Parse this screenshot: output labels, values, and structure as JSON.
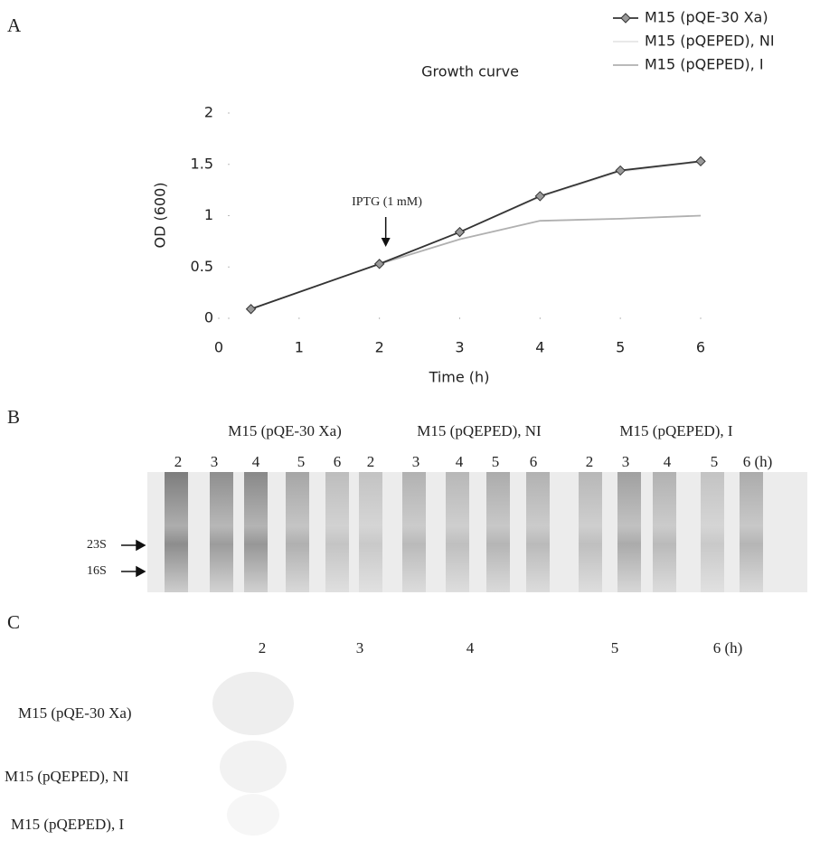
{
  "panel_labels": [
    "A",
    "B",
    "C"
  ],
  "chart_data": {
    "type": "line",
    "title": "Growth curve",
    "x_label": "Time (h)",
    "y_label": "OD (600)",
    "x": [
      0.4,
      2,
      3,
      4,
      5,
      6
    ],
    "series": [
      {
        "name": "M15 (pQE-30 Xa)",
        "color": "#333333",
        "marker": "diamond",
        "values": [
          0.09,
          0.53,
          0.84,
          1.19,
          1.44,
          1.53
        ]
      },
      {
        "name": "M15 (pQEPED), NI",
        "color": "#e6e6e6",
        "marker": "none",
        "values": [
          0.09,
          0.53,
          0.84,
          1.18,
          1.43,
          1.52
        ]
      },
      {
        "name": "M15 (pQEPED), I",
        "color": "#b0b0b0",
        "marker": "none",
        "values": [
          0.09,
          0.53,
          0.77,
          0.95,
          0.97,
          1.0
        ]
      }
    ],
    "xlim": [
      0,
      6
    ],
    "xticks": [
      0,
      1,
      2,
      3,
      4,
      5,
      6
    ],
    "ylim": [
      0,
      2
    ],
    "yticks": [
      0,
      0.5,
      1,
      1.5,
      2
    ],
    "grid": false,
    "legend": "top-right",
    "annotation": {
      "text": "IPTG (1 mM)",
      "x": 2
    }
  },
  "gel": {
    "groups": [
      "M15 (pQE-30 Xa)",
      "M15 (pQEPED), NI",
      "M15 (pQEPED), I"
    ],
    "lanes": [
      [
        2,
        3,
        4,
        5,
        6
      ],
      [
        2,
        3,
        4,
        5,
        6
      ],
      [
        2,
        3,
        4,
        5,
        "6 (h)"
      ]
    ],
    "markers": [
      "23S",
      "16S"
    ]
  },
  "dot_blot": {
    "columns": [
      2,
      3,
      4,
      5,
      "6 (h)"
    ],
    "rows": [
      "M15 (pQE-30 Xa)",
      "M15 (pQEPED), NI",
      "M15 (pQEPED), I"
    ]
  }
}
